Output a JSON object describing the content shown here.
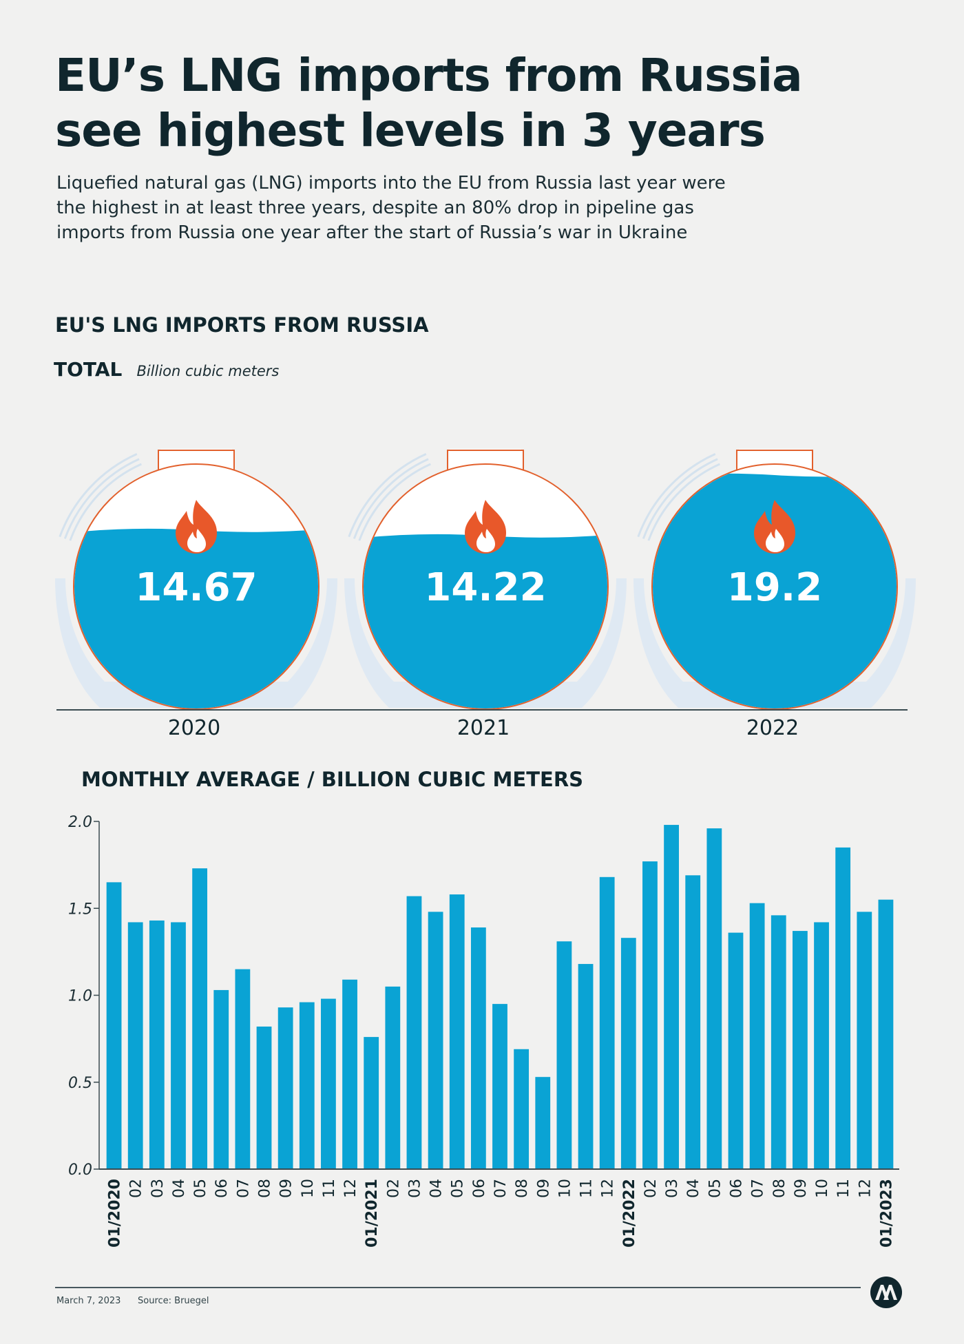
{
  "header": {
    "title_line1": "EU’s LNG imports from Russia",
    "title_line2": "see highest levels in 3 years",
    "subtitle": "Liquefied natural gas (LNG) imports into the EU from Russia last year were the highest in at least three years, despite an 80% drop in pipeline gas imports from Russia one year after the start of Russia’s war in Ukraine"
  },
  "section1": {
    "title": "EU'S LNG IMPORTS FROM RUSSIA",
    "total_label": "TOTAL",
    "unit_label": "Billion cubic meters"
  },
  "section2": {
    "title": "MONTHLY AVERAGE / BILLION CUBIC METERS"
  },
  "footer": {
    "date": "March 7, 2023",
    "source": "Source: Bruegel"
  },
  "colors": {
    "bar": "#0aa3d4",
    "tank_outline": "#e2602c",
    "flame": "#e8582a",
    "tank_bg": "#ffffff",
    "support": "#dfe9f3",
    "text": "#10262d"
  },
  "icons": [
    "flame-icon",
    "aa-logo-icon"
  ],
  "chart_data": [
    {
      "type": "bar",
      "title": "TOTAL",
      "ylabel": "Billion cubic meters",
      "categories": [
        "2020",
        "2021",
        "2022"
      ],
      "values": [
        14.67,
        14.22,
        19.2
      ],
      "value_labels": [
        "14.67",
        "14.22",
        "19.2"
      ]
    },
    {
      "type": "bar",
      "title": "MONTHLY AVERAGE / BILLION CUBIC METERS",
      "ylim": [
        0,
        2.0
      ],
      "yticks": [
        "0.0",
        "0.5",
        "1.0",
        "1.5",
        "2.0"
      ],
      "categories": [
        "01/2020",
        "02",
        "03",
        "04",
        "05",
        "06",
        "07",
        "08",
        "09",
        "10",
        "11",
        "12",
        "01/2021",
        "02",
        "03",
        "04",
        "05",
        "06",
        "07",
        "08",
        "09",
        "10",
        "11",
        "12",
        "01/2022",
        "02",
        "03",
        "04",
        "05",
        "06",
        "07",
        "08",
        "09",
        "10",
        "11",
        "12",
        "01/2023"
      ],
      "values": [
        1.65,
        1.42,
        1.43,
        1.42,
        1.73,
        1.03,
        1.15,
        0.82,
        0.93,
        0.96,
        0.98,
        1.09,
        0.76,
        1.05,
        1.57,
        1.48,
        1.58,
        1.39,
        0.95,
        0.69,
        0.53,
        1.31,
        1.18,
        1.68,
        1.33,
        1.77,
        1.98,
        1.69,
        1.96,
        1.36,
        1.53,
        1.46,
        1.37,
        1.42,
        1.85,
        1.48,
        1.55
      ]
    }
  ]
}
